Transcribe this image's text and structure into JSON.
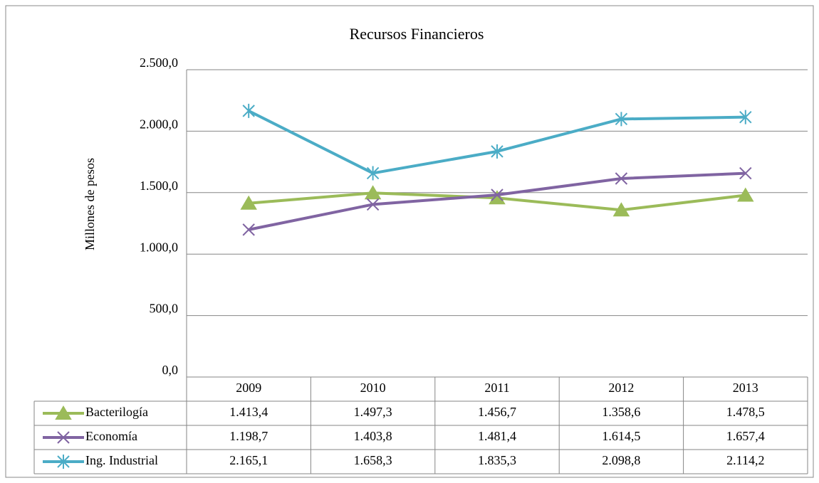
{
  "chart_data": {
    "type": "line",
    "title": "Recursos Financieros",
    "y_label": "Millones  de pesos",
    "categories": [
      "2009",
      "2010",
      "2011",
      "2012",
      "2013"
    ],
    "series": [
      {
        "name": "Bacterilogía",
        "color": "#9bbb59",
        "marker": "triangle",
        "values": [
          1413.4,
          1497.3,
          1456.7,
          1358.6,
          1478.5
        ],
        "value_labels": [
          "1.413,4",
          "1.497,3",
          "1.456,7",
          "1.358,6",
          "1.478,5"
        ]
      },
      {
        "name": "Economía",
        "color": "#8064a2",
        "marker": "x",
        "values": [
          1198.7,
          1403.8,
          1481.4,
          1614.5,
          1657.4
        ],
        "value_labels": [
          "1.198,7",
          "1.403,8",
          "1.481,4",
          "1.614,5",
          "1.657,4"
        ]
      },
      {
        "name": "Ing. Industrial",
        "color": "#4bacc6",
        "marker": "star",
        "values": [
          2165.1,
          1658.3,
          1835.3,
          2098.8,
          2114.2
        ],
        "value_labels": [
          "2.165,1",
          "1.658,3",
          "1.835,3",
          "2.098,8",
          "2.114,2"
        ]
      }
    ],
    "ylim": [
      0,
      2500
    ],
    "yticks": [
      {
        "value": 0,
        "label": "0,0"
      },
      {
        "value": 500,
        "label": "500,0"
      },
      {
        "value": 1000,
        "label": "1.000,0"
      },
      {
        "value": 1500,
        "label": "1.500,0"
      },
      {
        "value": 2000,
        "label": "2.000,0"
      },
      {
        "value": 2500,
        "label": "2.500,0"
      }
    ],
    "grid": true
  }
}
